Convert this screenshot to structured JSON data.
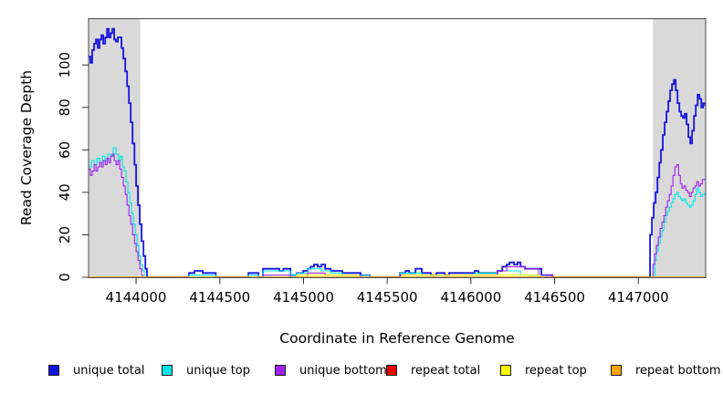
{
  "chart_data": {
    "type": "line",
    "title": "",
    "xlabel": "Coordinate in Reference Genome",
    "ylabel": "Read Coverage Depth",
    "xlim": [
      4143716,
      4147402
    ],
    "ylim": [
      0,
      122
    ],
    "x_ticks": [
      "4144000",
      "4144500",
      "4145000",
      "4145500",
      "4146000",
      "4146500",
      "4147000"
    ],
    "x_tick_values": [
      4144000,
      4144500,
      4145000,
      4145500,
      4146000,
      4146500,
      4147000
    ],
    "y_ticks": [
      "0",
      "20",
      "40",
      "60",
      "80",
      "100"
    ],
    "y_tick_values": [
      0,
      20,
      40,
      60,
      80,
      100
    ],
    "grid": false,
    "legend_position": "bottom",
    "plot_border_color": "#4a4a4a",
    "shade_color": "#d9d9d9",
    "shaded_regions": [
      {
        "x0": 4143716,
        "x1": 4144025
      },
      {
        "x0": 4147087,
        "x1": 4147402
      }
    ],
    "series": [
      {
        "name": "unique total",
        "color": "#1414e0",
        "width": 1.8,
        "points": [
          [
            4143716,
            104
          ],
          [
            4143727,
            101
          ],
          [
            4143738,
            107
          ],
          [
            4143749,
            110
          ],
          [
            4143760,
            112
          ],
          [
            4143771,
            108
          ],
          [
            4143782,
            112
          ],
          [
            4143793,
            114
          ],
          [
            4143804,
            110
          ],
          [
            4143815,
            113
          ],
          [
            4143826,
            117
          ],
          [
            4143837,
            113
          ],
          [
            4143848,
            115
          ],
          [
            4143858,
            117
          ],
          [
            4143869,
            112
          ],
          [
            4143880,
            111
          ],
          [
            4143891,
            113
          ],
          [
            4143902,
            113
          ],
          [
            4143913,
            108
          ],
          [
            4143924,
            103
          ],
          [
            4143935,
            97
          ],
          [
            4143946,
            90
          ],
          [
            4143957,
            82
          ],
          [
            4143968,
            73
          ],
          [
            4143979,
            63
          ],
          [
            4143990,
            53
          ],
          [
            4144000,
            43
          ],
          [
            4144011,
            34
          ],
          [
            4144022,
            25
          ],
          [
            4144033,
            17
          ],
          [
            4144044,
            10
          ],
          [
            4144055,
            4
          ],
          [
            4144065,
            0
          ],
          [
            4144316,
            2
          ],
          [
            4144349,
            3
          ],
          [
            4144398,
            2
          ],
          [
            4144476,
            0
          ],
          [
            4144671,
            2
          ],
          [
            4144731,
            0
          ],
          [
            4144758,
            4
          ],
          [
            4144824,
            4
          ],
          [
            4144856,
            3
          ],
          [
            4144879,
            4
          ],
          [
            4144922,
            1
          ],
          [
            4144960,
            2
          ],
          [
            4144998,
            3
          ],
          [
            4145025,
            4
          ],
          [
            4145042,
            5
          ],
          [
            4145063,
            6
          ],
          [
            4145085,
            5
          ],
          [
            4145107,
            6
          ],
          [
            4145129,
            4
          ],
          [
            4145162,
            3
          ],
          [
            4145232,
            2
          ],
          [
            4145341,
            1
          ],
          [
            4145396,
            0
          ],
          [
            4145576,
            2
          ],
          [
            4145609,
            3
          ],
          [
            4145631,
            2
          ],
          [
            4145669,
            4
          ],
          [
            4145707,
            2
          ],
          [
            4145761,
            1
          ],
          [
            4145794,
            2
          ],
          [
            4145843,
            1
          ],
          [
            4145870,
            2
          ],
          [
            4146023,
            3
          ],
          [
            4146045,
            2
          ],
          [
            4146159,
            3
          ],
          [
            4146187,
            5
          ],
          [
            4146214,
            6
          ],
          [
            4146230,
            7
          ],
          [
            4146258,
            6
          ],
          [
            4146279,
            7
          ],
          [
            4146296,
            5
          ],
          [
            4146323,
            4
          ],
          [
            4146405,
            4
          ],
          [
            4146421,
            1
          ],
          [
            4146487,
            0
          ],
          [
            4147070,
            20
          ],
          [
            4147081,
            28
          ],
          [
            4147092,
            35
          ],
          [
            4147103,
            40
          ],
          [
            4147114,
            47
          ],
          [
            4147125,
            54
          ],
          [
            4147135,
            60
          ],
          [
            4147146,
            67
          ],
          [
            4147157,
            73
          ],
          [
            4147168,
            78
          ],
          [
            4147179,
            83
          ],
          [
            4147190,
            88
          ],
          [
            4147201,
            91
          ],
          [
            4147212,
            93
          ],
          [
            4147223,
            88
          ],
          [
            4147234,
            82
          ],
          [
            4147245,
            78
          ],
          [
            4147256,
            76
          ],
          [
            4147266,
            75
          ],
          [
            4147277,
            77
          ],
          [
            4147288,
            72
          ],
          [
            4147299,
            66
          ],
          [
            4147310,
            63
          ],
          [
            4147321,
            69
          ],
          [
            4147332,
            76
          ],
          [
            4147343,
            81
          ],
          [
            4147354,
            86
          ],
          [
            4147365,
            84
          ],
          [
            4147376,
            80
          ],
          [
            4147387,
            82
          ],
          [
            4147398,
            81
          ]
        ]
      },
      {
        "name": "unique top",
        "color": "#00e6e6",
        "width": 1.1,
        "points": [
          [
            4143716,
            52
          ],
          [
            4143733,
            55
          ],
          [
            4143749,
            53
          ],
          [
            4143766,
            56
          ],
          [
            4143782,
            54
          ],
          [
            4143798,
            57
          ],
          [
            4143815,
            55
          ],
          [
            4143831,
            58
          ],
          [
            4143848,
            57
          ],
          [
            4143863,
            61
          ],
          [
            4143880,
            58
          ],
          [
            4143896,
            55
          ],
          [
            4143907,
            57
          ],
          [
            4143918,
            52
          ],
          [
            4143929,
            50
          ],
          [
            4143940,
            45
          ],
          [
            4143951,
            40
          ],
          [
            4143962,
            35
          ],
          [
            4143973,
            30
          ],
          [
            4143984,
            25
          ],
          [
            4143995,
            20
          ],
          [
            4144006,
            15
          ],
          [
            4144017,
            10
          ],
          [
            4144028,
            6
          ],
          [
            4144039,
            3
          ],
          [
            4144049,
            0
          ],
          [
            4144316,
            1
          ],
          [
            4144476,
            0
          ],
          [
            4144671,
            1
          ],
          [
            4144731,
            0
          ],
          [
            4144758,
            3
          ],
          [
            4144922,
            1
          ],
          [
            4144960,
            2
          ],
          [
            4145025,
            4
          ],
          [
            4145107,
            3
          ],
          [
            4145162,
            2
          ],
          [
            4145232,
            1
          ],
          [
            4145396,
            0
          ],
          [
            4145576,
            2
          ],
          [
            4145707,
            1
          ],
          [
            4145870,
            1
          ],
          [
            4146023,
            2
          ],
          [
            4146159,
            3
          ],
          [
            4146230,
            3
          ],
          [
            4146296,
            1
          ],
          [
            4146421,
            1
          ],
          [
            4146450,
            0
          ],
          [
            4147092,
            0
          ],
          [
            4147098,
            8
          ],
          [
            4147108,
            12
          ],
          [
            4147119,
            16
          ],
          [
            4147130,
            19
          ],
          [
            4147141,
            22
          ],
          [
            4147152,
            26
          ],
          [
            4147163,
            29
          ],
          [
            4147174,
            31
          ],
          [
            4147185,
            33
          ],
          [
            4147196,
            35
          ],
          [
            4147207,
            37
          ],
          [
            4147218,
            39
          ],
          [
            4147229,
            40
          ],
          [
            4147240,
            38
          ],
          [
            4147251,
            37
          ],
          [
            4147261,
            36
          ],
          [
            4147272,
            37
          ],
          [
            4147283,
            35
          ],
          [
            4147294,
            34
          ],
          [
            4147305,
            33
          ],
          [
            4147316,
            34
          ],
          [
            4147327,
            36
          ],
          [
            4147338,
            39
          ],
          [
            4147349,
            42
          ],
          [
            4147360,
            40
          ],
          [
            4147371,
            38
          ],
          [
            4147382,
            39
          ],
          [
            4147398,
            40
          ]
        ]
      },
      {
        "name": "unique bottom",
        "color": "#a020f0",
        "width": 1.1,
        "points": [
          [
            4143716,
            51
          ],
          [
            4143727,
            48
          ],
          [
            4143738,
            50
          ],
          [
            4143749,
            53
          ],
          [
            4143760,
            50
          ],
          [
            4143771,
            52
          ],
          [
            4143782,
            54
          ],
          [
            4143793,
            52
          ],
          [
            4143804,
            55
          ],
          [
            4143815,
            53
          ],
          [
            4143826,
            56
          ],
          [
            4143837,
            54
          ],
          [
            4143848,
            57
          ],
          [
            4143858,
            58
          ],
          [
            4143869,
            55
          ],
          [
            4143880,
            53
          ],
          [
            4143891,
            55
          ],
          [
            4143902,
            51
          ],
          [
            4143913,
            47
          ],
          [
            4143924,
            43
          ],
          [
            4143935,
            39
          ],
          [
            4143946,
            34
          ],
          [
            4143957,
            29
          ],
          [
            4143968,
            25
          ],
          [
            4143979,
            20
          ],
          [
            4143990,
            16
          ],
          [
            4144000,
            12
          ],
          [
            4144011,
            8
          ],
          [
            4144022,
            4
          ],
          [
            4144033,
            1
          ],
          [
            4144039,
            0
          ],
          [
            4144758,
            1
          ],
          [
            4144922,
            0
          ],
          [
            4145025,
            2
          ],
          [
            4145129,
            1
          ],
          [
            4145341,
            0
          ],
          [
            4145576,
            1
          ],
          [
            4145870,
            1
          ],
          [
            4146159,
            3
          ],
          [
            4146214,
            5
          ],
          [
            4146279,
            5
          ],
          [
            4146323,
            4
          ],
          [
            4146405,
            1
          ],
          [
            4146487,
            0
          ],
          [
            4147076,
            0
          ],
          [
            4147087,
            6
          ],
          [
            4147098,
            11
          ],
          [
            4147108,
            15
          ],
          [
            4147119,
            19
          ],
          [
            4147130,
            23
          ],
          [
            4147141,
            26
          ],
          [
            4147152,
            29
          ],
          [
            4147163,
            33
          ],
          [
            4147174,
            36
          ],
          [
            4147185,
            39
          ],
          [
            4147196,
            43
          ],
          [
            4147207,
            48
          ],
          [
            4147218,
            52
          ],
          [
            4147229,
            53
          ],
          [
            4147240,
            48
          ],
          [
            4147251,
            44
          ],
          [
            4147261,
            42
          ],
          [
            4147272,
            43
          ],
          [
            4147283,
            41
          ],
          [
            4147294,
            40
          ],
          [
            4147305,
            38
          ],
          [
            4147316,
            40
          ],
          [
            4147327,
            42
          ],
          [
            4147338,
            43
          ],
          [
            4147349,
            45
          ],
          [
            4147360,
            43
          ],
          [
            4147371,
            44
          ],
          [
            4147382,
            46
          ],
          [
            4147398,
            46
          ]
        ]
      },
      {
        "name": "repeat total",
        "color": "#e60000",
        "width": 1.1,
        "points": [
          [
            4143716,
            0
          ],
          [
            4147402,
            0
          ]
        ]
      },
      {
        "name": "repeat top",
        "color": "#ffff00",
        "width": 1.1,
        "points": [
          [
            4143716,
            0
          ],
          [
            4144960,
            1
          ],
          [
            4145330,
            0
          ],
          [
            4145590,
            1
          ],
          [
            4146410,
            0
          ],
          [
            4147402,
            0
          ]
        ]
      },
      {
        "name": "repeat bottom",
        "color": "#ffa500",
        "width": 1.4,
        "points": [
          [
            4143716,
            0
          ],
          [
            4147402,
            0
          ]
        ]
      }
    ]
  }
}
